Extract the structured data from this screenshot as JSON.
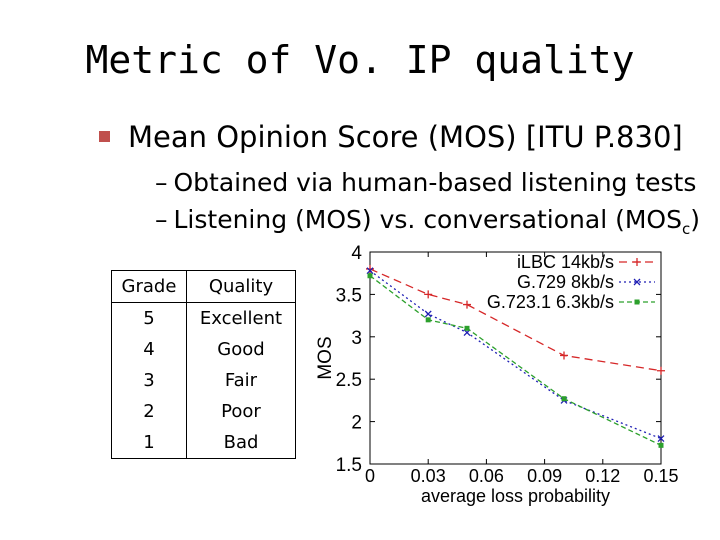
{
  "slide": {
    "title": "Metric of Vo. IP quality",
    "bullet": "Mean Opinion Score (MOS) [ITU P.830]",
    "subbullets": [
      {
        "dash": "–",
        "text": "Obtained via human-based listening tests"
      },
      {
        "dash": "–",
        "text": "Listening (MOS) vs. conversational (MOS",
        "sub": "c",
        "suffix": ")"
      }
    ]
  },
  "grade_table": {
    "headers": [
      "Grade",
      "Quality"
    ],
    "rows": [
      [
        "5",
        "Excellent"
      ],
      [
        "4",
        "Good"
      ],
      [
        "3",
        "Fair"
      ],
      [
        "2",
        "Poor"
      ],
      [
        "1",
        "Bad"
      ]
    ]
  },
  "chart_data": {
    "type": "line",
    "xlabel": "average loss probability",
    "ylabel": "MOS",
    "xlim": [
      0,
      0.15
    ],
    "ylim": [
      1.5,
      4
    ],
    "xticks": [
      "0",
      "0.03",
      "0.06",
      "0.09",
      "0.12",
      "0.15"
    ],
    "yticks": [
      "1.5",
      "2",
      "2.5",
      "3",
      "3.5",
      "4"
    ],
    "legend_position": "top-right",
    "series": [
      {
        "name": "iLBC 14kb/s",
        "color": "#d62728",
        "marker": "+",
        "dash": "8,5",
        "x": [
          0,
          0.03,
          0.05,
          0.1,
          0.15
        ],
        "y": [
          3.8,
          3.5,
          3.38,
          2.78,
          2.6
        ]
      },
      {
        "name": "G.729 8kb/s",
        "color": "#1f1fb4",
        "marker": "x",
        "dash": "2,3",
        "x": [
          0,
          0.03,
          0.05,
          0.1,
          0.15
        ],
        "y": [
          3.78,
          3.27,
          3.05,
          2.25,
          1.8
        ]
      },
      {
        "name": "G.723.1 6.3kb/s",
        "color": "#2ca02c",
        "marker": "square",
        "dash": "5,3",
        "x": [
          0,
          0.03,
          0.05,
          0.1,
          0.15
        ],
        "y": [
          3.72,
          3.2,
          3.1,
          2.27,
          1.72
        ]
      }
    ]
  }
}
